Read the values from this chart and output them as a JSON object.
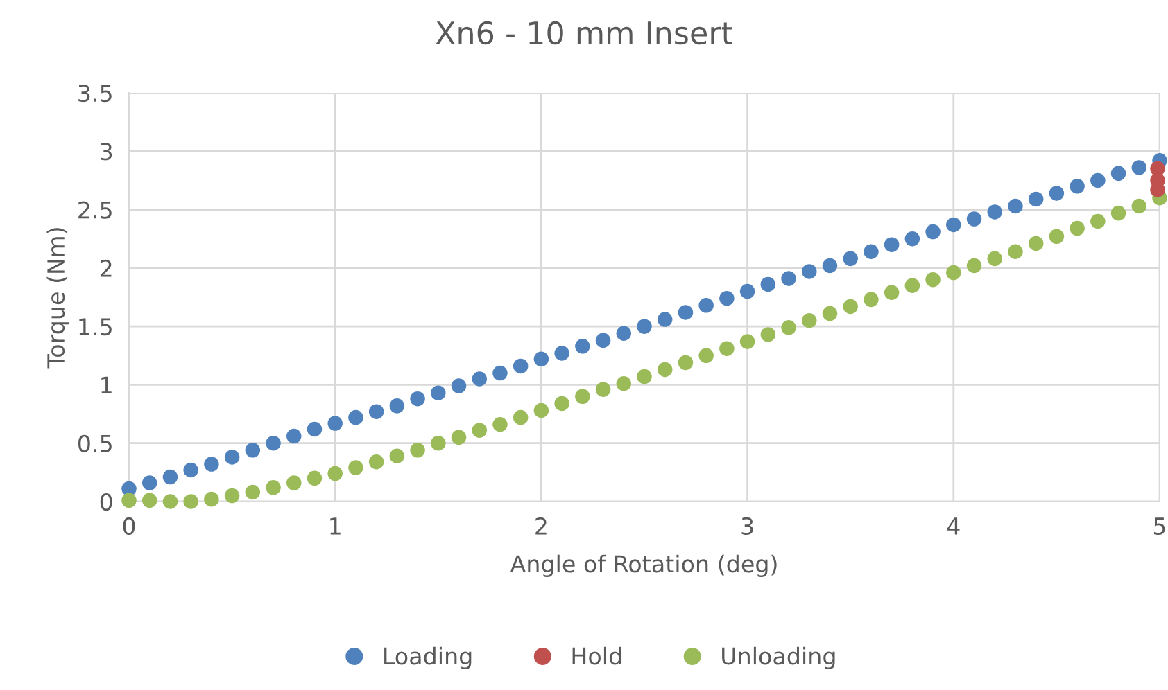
{
  "chart_data": {
    "type": "scatter",
    "title": "Xn6 - 10 mm Insert",
    "xlabel": "Angle of Rotation (deg)",
    "ylabel": "Torque (Nm)",
    "xlim": [
      0,
      5
    ],
    "xticks": [
      0,
      1,
      2,
      3,
      4,
      5
    ],
    "ylim": [
      0,
      3.5
    ],
    "yticks": [
      0,
      0.5,
      1,
      1.5,
      2,
      2.5,
      3,
      3.5
    ],
    "grid": true,
    "legend": "bottom",
    "marker": "circle",
    "series": [
      {
        "name": "Loading",
        "color": "#4f81bd",
        "x": [
          0,
          0.1,
          0.2,
          0.3,
          0.4,
          0.5,
          0.6,
          0.7,
          0.8,
          0.9,
          1.0,
          1.1,
          1.2,
          1.3,
          1.4,
          1.5,
          1.6,
          1.7,
          1.8,
          1.9,
          2.0,
          2.1,
          2.2,
          2.3,
          2.4,
          2.5,
          2.6,
          2.7,
          2.8,
          2.9,
          3.0,
          3.1,
          3.2,
          3.3,
          3.4,
          3.5,
          3.6,
          3.7,
          3.8,
          3.9,
          4.0,
          4.1,
          4.2,
          4.3,
          4.4,
          4.5,
          4.6,
          4.7,
          4.8,
          4.9,
          5.0
        ],
        "values": [
          0.11,
          0.16,
          0.21,
          0.27,
          0.32,
          0.38,
          0.44,
          0.5,
          0.56,
          0.62,
          0.67,
          0.72,
          0.77,
          0.82,
          0.88,
          0.93,
          0.99,
          1.05,
          1.1,
          1.16,
          1.22,
          1.27,
          1.33,
          1.38,
          1.44,
          1.5,
          1.56,
          1.62,
          1.68,
          1.74,
          1.8,
          1.86,
          1.91,
          1.97,
          2.02,
          2.08,
          2.14,
          2.2,
          2.25,
          2.31,
          2.37,
          2.42,
          2.48,
          2.53,
          2.59,
          2.64,
          2.7,
          2.75,
          2.81,
          2.86,
          2.92
        ]
      },
      {
        "name": "Hold",
        "color": "#c0504d",
        "x": [
          4.99,
          4.99,
          4.99
        ],
        "values": [
          2.85,
          2.75,
          2.67
        ]
      },
      {
        "name": "Unloading",
        "color": "#9bbb59",
        "x": [
          0,
          0.1,
          0.2,
          0.3,
          0.4,
          0.5,
          0.6,
          0.7,
          0.8,
          0.9,
          1.0,
          1.1,
          1.2,
          1.3,
          1.4,
          1.5,
          1.6,
          1.7,
          1.8,
          1.9,
          2.0,
          2.1,
          2.2,
          2.3,
          2.4,
          2.5,
          2.6,
          2.7,
          2.8,
          2.9,
          3.0,
          3.1,
          3.2,
          3.3,
          3.4,
          3.5,
          3.6,
          3.7,
          3.8,
          3.9,
          4.0,
          4.1,
          4.2,
          4.3,
          4.4,
          4.5,
          4.6,
          4.7,
          4.8,
          4.9,
          5.0
        ],
        "values": [
          0.01,
          0.01,
          0.0,
          0.0,
          0.02,
          0.05,
          0.08,
          0.12,
          0.16,
          0.2,
          0.24,
          0.29,
          0.34,
          0.39,
          0.44,
          0.5,
          0.55,
          0.61,
          0.66,
          0.72,
          0.78,
          0.84,
          0.9,
          0.96,
          1.01,
          1.07,
          1.13,
          1.19,
          1.25,
          1.31,
          1.37,
          1.43,
          1.49,
          1.55,
          1.61,
          1.67,
          1.73,
          1.79,
          1.85,
          1.9,
          1.96,
          2.02,
          2.08,
          2.14,
          2.21,
          2.27,
          2.34,
          2.4,
          2.47,
          2.53,
          2.6
        ]
      }
    ]
  }
}
